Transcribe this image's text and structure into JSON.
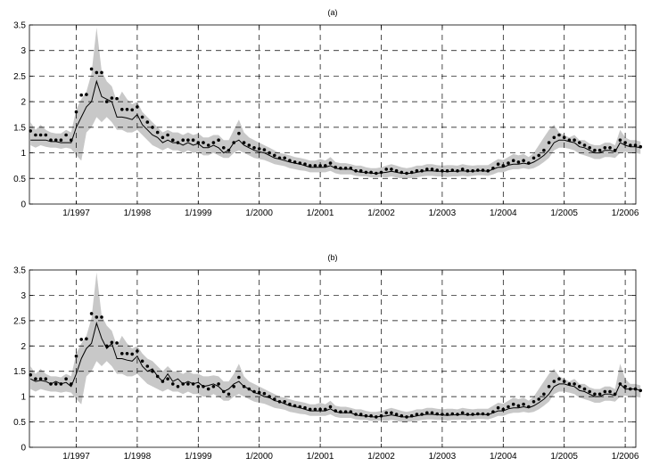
{
  "chart_data": [
    {
      "type": "line",
      "title": "(a)",
      "xlabel": "",
      "ylabel": "",
      "ylim": [
        0,
        3.5
      ],
      "yticks": [
        "0",
        "0.5",
        "1",
        "1.5",
        "2",
        "2.5",
        "3",
        "3.5"
      ],
      "xticks": [
        "1/1997",
        "1/1998",
        "1/1999",
        "1/2000",
        "1/2001",
        "1/2002",
        "1/2003",
        "1/2004",
        "1/2005",
        "1/2006"
      ],
      "grid": true,
      "x_start_year": 1996.25,
      "x_step_years": 0.08333,
      "series": [
        {
          "kind": "observed-dots",
          "values": [
            1.43,
            1.35,
            1.35,
            1.35,
            1.25,
            1.25,
            1.25,
            1.35,
            1.25,
            1.8,
            2.13,
            2.14,
            2.64,
            2.57,
            2.57,
            2.0,
            2.07,
            2.06,
            1.85,
            1.85,
            1.84,
            1.9,
            1.7,
            1.6,
            1.5,
            1.4,
            1.3,
            1.35,
            1.25,
            1.2,
            1.25,
            1.25,
            1.25,
            1.2,
            1.2,
            1.15,
            1.2,
            1.25,
            1.1,
            1.05,
            1.2,
            1.38,
            1.2,
            1.15,
            1.1,
            1.08,
            1.06,
            1.0,
            0.95,
            0.9,
            0.9,
            0.85,
            0.82,
            0.8,
            0.78,
            0.75,
            0.75,
            0.75,
            0.75,
            0.8,
            0.72,
            0.7,
            0.7,
            0.7,
            0.65,
            0.65,
            0.62,
            0.62,
            0.6,
            0.62,
            0.68,
            0.68,
            0.65,
            0.62,
            0.6,
            0.62,
            0.65,
            0.65,
            0.68,
            0.68,
            0.66,
            0.65,
            0.65,
            0.66,
            0.65,
            0.68,
            0.65,
            0.65,
            0.66,
            0.66,
            0.65,
            0.7,
            0.78,
            0.75,
            0.8,
            0.85,
            0.82,
            0.85,
            0.8,
            0.9,
            0.95,
            1.05,
            1.2,
            1.3,
            1.35,
            1.3,
            1.25,
            1.25,
            1.2,
            1.15,
            1.1,
            1.05,
            1.05,
            1.1,
            1.1,
            1.05,
            1.25,
            1.2,
            1.15,
            1.15,
            1.12
          ]
        },
        {
          "kind": "fitted-line",
          "values": [
            1.25,
            1.25,
            1.25,
            1.25,
            1.22,
            1.22,
            1.2,
            1.2,
            1.2,
            1.5,
            1.7,
            1.9,
            2.0,
            2.4,
            2.1,
            2.05,
            2.0,
            1.7,
            1.7,
            1.68,
            1.65,
            1.75,
            1.55,
            1.45,
            1.35,
            1.3,
            1.2,
            1.25,
            1.2,
            1.2,
            1.15,
            1.2,
            1.15,
            1.18,
            1.1,
            1.1,
            1.15,
            1.1,
            1.0,
            1.05,
            1.2,
            1.25,
            1.15,
            1.1,
            1.05,
            1.02,
            1.0,
            0.95,
            0.9,
            0.88,
            0.85,
            0.82,
            0.8,
            0.78,
            0.75,
            0.72,
            0.72,
            0.72,
            0.72,
            0.75,
            0.7,
            0.68,
            0.68,
            0.68,
            0.64,
            0.62,
            0.62,
            0.6,
            0.6,
            0.61,
            0.62,
            0.64,
            0.62,
            0.6,
            0.6,
            0.6,
            0.62,
            0.64,
            0.65,
            0.65,
            0.64,
            0.64,
            0.63,
            0.64,
            0.64,
            0.65,
            0.64,
            0.64,
            0.65,
            0.65,
            0.64,
            0.68,
            0.72,
            0.72,
            0.76,
            0.78,
            0.78,
            0.8,
            0.78,
            0.82,
            0.88,
            0.95,
            1.05,
            1.2,
            1.25,
            1.25,
            1.22,
            1.2,
            1.12,
            1.1,
            1.05,
            1.0,
            1.0,
            1.05,
            1.05,
            1.02,
            1.2,
            1.15,
            1.12,
            1.12,
            1.1
          ]
        },
        {
          "kind": "band-upper",
          "values": [
            1.6,
            1.45,
            1.55,
            1.45,
            1.4,
            1.38,
            1.38,
            1.45,
            1.4,
            1.85,
            2.05,
            2.2,
            2.55,
            3.45,
            2.6,
            2.4,
            2.3,
            2.0,
            2.2,
            2.05,
            1.95,
            2.0,
            1.8,
            1.7,
            1.6,
            1.5,
            1.4,
            1.45,
            1.4,
            1.4,
            1.35,
            1.4,
            1.35,
            1.38,
            1.3,
            1.3,
            1.35,
            1.35,
            1.25,
            1.25,
            1.45,
            1.65,
            1.4,
            1.3,
            1.25,
            1.2,
            1.15,
            1.1,
            1.05,
            1.0,
            0.98,
            0.95,
            0.92,
            0.9,
            0.88,
            0.85,
            0.85,
            0.88,
            0.85,
            0.92,
            0.82,
            0.8,
            0.8,
            0.78,
            0.75,
            0.75,
            0.72,
            0.7,
            0.7,
            0.72,
            0.75,
            0.78,
            0.75,
            0.72,
            0.7,
            0.72,
            0.75,
            0.75,
            0.78,
            0.78,
            0.76,
            0.75,
            0.76,
            0.76,
            0.75,
            0.78,
            0.76,
            0.75,
            0.76,
            0.76,
            0.76,
            0.82,
            0.88,
            0.86,
            0.92,
            0.98,
            0.95,
            0.98,
            0.92,
            1.0,
            1.15,
            1.3,
            1.45,
            1.55,
            1.4,
            1.35,
            1.3,
            1.35,
            1.25,
            1.25,
            1.18,
            1.15,
            1.15,
            1.2,
            1.2,
            1.15,
            1.45,
            1.3,
            1.25,
            1.25,
            1.22
          ]
        },
        {
          "kind": "band-lower",
          "values": [
            1.15,
            1.1,
            1.15,
            1.12,
            1.1,
            1.1,
            1.08,
            1.1,
            1.08,
            0.95,
            0.85,
            1.4,
            1.5,
            1.7,
            1.6,
            1.7,
            1.6,
            1.45,
            1.45,
            1.4,
            1.4,
            1.45,
            1.35,
            1.25,
            1.15,
            1.1,
            1.05,
            1.1,
            1.05,
            1.05,
            1.0,
            1.05,
            1.0,
            1.02,
            0.95,
            0.95,
            1.0,
            0.95,
            0.9,
            0.9,
            1.0,
            1.05,
            1.0,
            0.95,
            0.9,
            0.88,
            0.86,
            0.82,
            0.78,
            0.76,
            0.74,
            0.7,
            0.68,
            0.66,
            0.65,
            0.62,
            0.62,
            0.62,
            0.62,
            0.65,
            0.6,
            0.58,
            0.58,
            0.58,
            0.55,
            0.54,
            0.54,
            0.52,
            0.52,
            0.53,
            0.52,
            0.54,
            0.52,
            0.5,
            0.5,
            0.51,
            0.52,
            0.54,
            0.55,
            0.55,
            0.54,
            0.54,
            0.53,
            0.54,
            0.54,
            0.55,
            0.54,
            0.55,
            0.56,
            0.56,
            0.55,
            0.58,
            0.62,
            0.62,
            0.66,
            0.68,
            0.68,
            0.7,
            0.68,
            0.7,
            0.75,
            0.82,
            0.9,
            1.05,
            1.1,
            1.1,
            1.08,
            1.05,
            0.98,
            0.95,
            0.92,
            0.88,
            0.88,
            0.92,
            0.92,
            0.9,
            1.0,
            1.02,
            1.0,
            1.0,
            0.98
          ]
        }
      ]
    },
    {
      "type": "line",
      "title": "(b)",
      "xlabel": "",
      "ylabel": "",
      "ylim": [
        0,
        3.5
      ],
      "yticks": [
        "0",
        "0.5",
        "1",
        "1.5",
        "2",
        "2.5",
        "3",
        "3.5"
      ],
      "xticks": [
        "1/1997",
        "1/1998",
        "1/1999",
        "1/2000",
        "1/2001",
        "1/2002",
        "1/2003",
        "1/2004",
        "1/2005",
        "1/2006"
      ],
      "grid": true,
      "x_start_year": 1996.25,
      "x_step_years": 0.08333,
      "series": [
        {
          "kind": "observed-dots",
          "values": [
            1.43,
            1.35,
            1.35,
            1.35,
            1.25,
            1.25,
            1.25,
            1.35,
            1.25,
            1.8,
            2.13,
            2.14,
            2.64,
            2.57,
            2.57,
            2.0,
            2.07,
            2.06,
            1.85,
            1.85,
            1.84,
            1.9,
            1.7,
            1.6,
            1.5,
            1.4,
            1.3,
            1.35,
            1.25,
            1.2,
            1.25,
            1.25,
            1.25,
            1.2,
            1.2,
            1.15,
            1.2,
            1.25,
            1.1,
            1.05,
            1.2,
            1.38,
            1.2,
            1.15,
            1.1,
            1.08,
            1.06,
            1.0,
            0.95,
            0.9,
            0.9,
            0.85,
            0.82,
            0.8,
            0.78,
            0.75,
            0.75,
            0.75,
            0.75,
            0.8,
            0.72,
            0.7,
            0.7,
            0.7,
            0.65,
            0.65,
            0.62,
            0.62,
            0.6,
            0.62,
            0.68,
            0.68,
            0.65,
            0.62,
            0.6,
            0.62,
            0.65,
            0.65,
            0.68,
            0.68,
            0.66,
            0.65,
            0.65,
            0.66,
            0.65,
            0.68,
            0.65,
            0.65,
            0.66,
            0.66,
            0.65,
            0.7,
            0.78,
            0.75,
            0.8,
            0.85,
            0.82,
            0.85,
            0.8,
            0.9,
            0.95,
            1.05,
            1.2,
            1.3,
            1.35,
            1.3,
            1.25,
            1.25,
            1.2,
            1.15,
            1.1,
            1.05,
            1.05,
            1.1,
            1.1,
            1.05,
            1.25,
            1.2,
            1.15,
            1.15,
            1.12
          ]
        },
        {
          "kind": "fitted-line",
          "values": [
            1.35,
            1.3,
            1.32,
            1.3,
            1.25,
            1.3,
            1.25,
            1.28,
            1.2,
            1.45,
            1.75,
            1.95,
            2.05,
            2.45,
            2.15,
            1.95,
            2.05,
            1.75,
            1.75,
            1.72,
            1.7,
            1.8,
            1.6,
            1.5,
            1.55,
            1.4,
            1.3,
            1.45,
            1.3,
            1.35,
            1.25,
            1.3,
            1.25,
            1.28,
            1.2,
            1.22,
            1.25,
            1.2,
            1.1,
            1.15,
            1.25,
            1.3,
            1.2,
            1.15,
            1.08,
            1.05,
            1.0,
            0.98,
            0.92,
            0.9,
            0.86,
            0.82,
            0.8,
            0.78,
            0.75,
            0.72,
            0.72,
            0.72,
            0.72,
            0.76,
            0.7,
            0.68,
            0.68,
            0.68,
            0.64,
            0.62,
            0.62,
            0.6,
            0.6,
            0.61,
            0.62,
            0.64,
            0.62,
            0.6,
            0.6,
            0.6,
            0.62,
            0.64,
            0.65,
            0.65,
            0.64,
            0.64,
            0.63,
            0.64,
            0.64,
            0.65,
            0.64,
            0.64,
            0.65,
            0.65,
            0.64,
            0.68,
            0.72,
            0.72,
            0.76,
            0.78,
            0.78,
            0.8,
            0.78,
            0.82,
            0.88,
            0.95,
            1.05,
            1.2,
            1.25,
            1.25,
            1.22,
            1.2,
            1.12,
            1.1,
            1.05,
            1.0,
            1.0,
            1.05,
            1.05,
            1.02,
            1.25,
            1.15,
            1.15,
            1.15,
            1.12
          ]
        },
        {
          "kind": "band-upper",
          "values": [
            1.6,
            1.45,
            1.55,
            1.45,
            1.4,
            1.4,
            1.38,
            1.45,
            1.4,
            1.85,
            2.05,
            2.2,
            2.55,
            3.45,
            2.6,
            2.4,
            2.3,
            2.0,
            2.2,
            2.05,
            1.95,
            2.0,
            1.85,
            1.75,
            1.7,
            1.6,
            1.5,
            1.6,
            1.5,
            1.5,
            1.45,
            1.5,
            1.45,
            1.45,
            1.4,
            1.4,
            1.42,
            1.4,
            1.3,
            1.3,
            1.45,
            1.65,
            1.4,
            1.3,
            1.25,
            1.2,
            1.15,
            1.1,
            1.05,
            1.0,
            0.98,
            0.95,
            0.92,
            0.9,
            0.88,
            0.85,
            0.85,
            0.88,
            0.85,
            0.92,
            0.82,
            0.8,
            0.8,
            0.78,
            0.75,
            0.75,
            0.72,
            0.7,
            0.7,
            0.72,
            0.75,
            0.78,
            0.75,
            0.72,
            0.7,
            0.72,
            0.75,
            0.75,
            0.78,
            0.78,
            0.76,
            0.75,
            0.76,
            0.76,
            0.75,
            0.78,
            0.76,
            0.75,
            0.76,
            0.76,
            0.76,
            0.82,
            0.88,
            0.86,
            0.92,
            0.98,
            0.95,
            0.98,
            0.92,
            1.0,
            1.15,
            1.3,
            1.45,
            1.55,
            1.4,
            1.35,
            1.3,
            1.35,
            1.25,
            1.25,
            1.18,
            1.15,
            1.15,
            1.2,
            1.2,
            1.15,
            1.65,
            1.35,
            1.25,
            1.25,
            1.22
          ]
        },
        {
          "kind": "band-lower",
          "values": [
            1.15,
            1.1,
            1.15,
            1.12,
            1.1,
            1.1,
            1.08,
            1.1,
            1.08,
            0.95,
            0.85,
            1.4,
            1.5,
            1.7,
            1.6,
            1.7,
            1.6,
            1.45,
            1.45,
            1.4,
            1.4,
            1.45,
            1.35,
            1.25,
            1.2,
            1.15,
            1.1,
            1.15,
            1.1,
            1.1,
            1.05,
            1.1,
            1.05,
            1.05,
            1.0,
            1.0,
            1.05,
            1.0,
            0.92,
            0.92,
            1.0,
            1.05,
            1.0,
            0.95,
            0.9,
            0.88,
            0.86,
            0.82,
            0.78,
            0.76,
            0.74,
            0.7,
            0.68,
            0.66,
            0.65,
            0.62,
            0.62,
            0.62,
            0.62,
            0.65,
            0.6,
            0.58,
            0.58,
            0.58,
            0.55,
            0.54,
            0.54,
            0.52,
            0.52,
            0.53,
            0.52,
            0.54,
            0.52,
            0.5,
            0.5,
            0.51,
            0.52,
            0.54,
            0.55,
            0.55,
            0.54,
            0.54,
            0.53,
            0.54,
            0.54,
            0.55,
            0.54,
            0.55,
            0.56,
            0.56,
            0.55,
            0.58,
            0.62,
            0.62,
            0.66,
            0.68,
            0.68,
            0.7,
            0.68,
            0.7,
            0.75,
            0.82,
            0.9,
            1.05,
            1.1,
            1.1,
            1.08,
            1.05,
            0.98,
            0.95,
            0.92,
            0.88,
            0.88,
            0.92,
            0.92,
            0.9,
            1.0,
            1.02,
            1.0,
            1.0,
            0.98
          ]
        }
      ]
    }
  ]
}
